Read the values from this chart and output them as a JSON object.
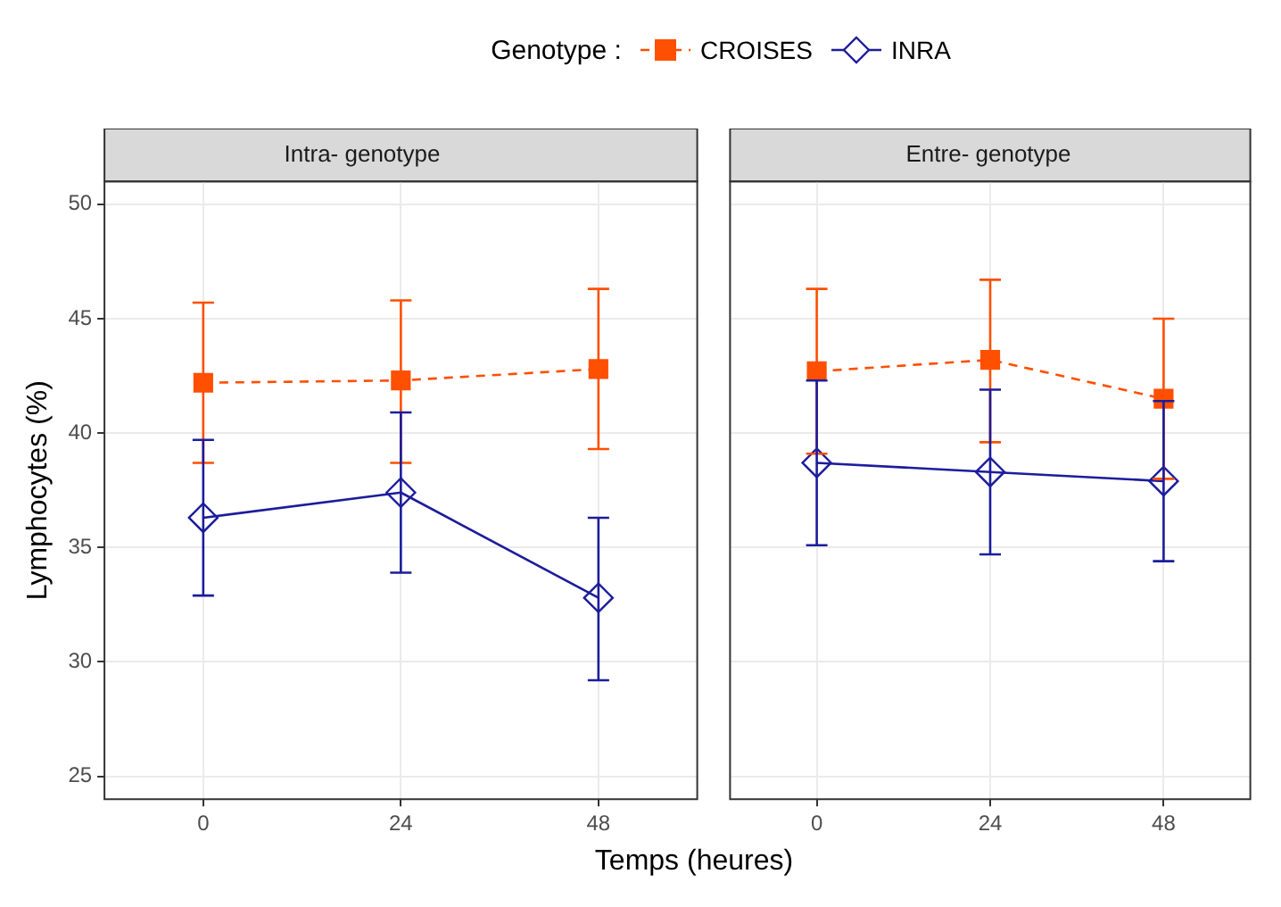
{
  "chart_data": [
    {
      "type": "line",
      "title": "Intra- genotype",
      "xlabel": "Temps (heures)",
      "ylabel": "Lymphocytes (%)",
      "legend_title": "Genotype :",
      "legend": "top",
      "grid": true,
      "categories": [
        "0",
        "24",
        "48"
      ],
      "ylim": [
        24,
        51
      ],
      "yticks": [
        25,
        30,
        35,
        40,
        45,
        50
      ],
      "series": [
        {
          "name": "CROISES",
          "color": "#ff4f00",
          "marker": "square",
          "line_style": "dashed",
          "values": [
            42.2,
            42.3,
            42.8
          ],
          "errors": [
            [
              38.7,
              45.7
            ],
            [
              38.7,
              45.8
            ],
            [
              39.3,
              46.3
            ]
          ]
        },
        {
          "name": "INRA",
          "color": "#1c1c9c",
          "marker": "diamond",
          "line_style": "solid",
          "values": [
            36.3,
            37.4,
            32.8
          ],
          "errors": [
            [
              32.9,
              39.7
            ],
            [
              33.9,
              40.9
            ],
            [
              29.2,
              36.3
            ]
          ]
        }
      ]
    },
    {
      "type": "line",
      "title": "Entre- genotype",
      "grid": true,
      "tick_labels": "x",
      "categories": [
        "0",
        "24",
        "48"
      ],
      "ylim": [
        24,
        51
      ],
      "yticks": [
        25,
        30,
        35,
        40,
        45,
        50
      ],
      "series": [
        {
          "color": "#ff4f00",
          "marker": "square",
          "line_style": "dashed",
          "values": [
            42.7,
            43.2,
            41.5
          ],
          "errors": [
            [
              39.1,
              46.3
            ],
            [
              39.6,
              46.7
            ],
            [
              38.0,
              45.0
            ]
          ]
        },
        {
          "color": "#1c1c9c",
          "marker": "diamond",
          "line_style": "solid",
          "values": [
            38.7,
            38.3,
            37.9
          ],
          "errors": [
            [
              35.1,
              42.3
            ],
            [
              34.7,
              41.9
            ],
            [
              34.4,
              41.4
            ]
          ]
        }
      ]
    }
  ]
}
